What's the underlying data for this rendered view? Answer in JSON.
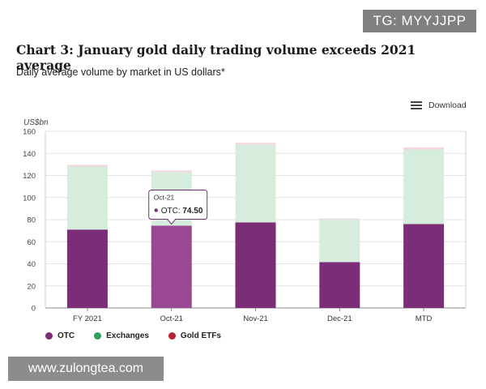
{
  "watermark_top": "TG: MYYJJPP",
  "watermark_bottom": "www.zulongtea.com",
  "download_label": "Download",
  "chart_data": {
    "type": "bar",
    "stacked": true,
    "title": "Chart 3: January gold daily trading volume exceeds 2021 average",
    "subtitle": "Daily average volume by market in US dollars*",
    "ylabel": "US$bn",
    "xlabel": "",
    "ylim": [
      0,
      160
    ],
    "yticks": [
      0,
      20,
      40,
      60,
      80,
      100,
      120,
      140,
      160
    ],
    "categories": [
      "FY 2021",
      "Oct-21",
      "Nov-21",
      "Dec-21",
      "MTD"
    ],
    "series": [
      {
        "name": "OTC",
        "color": "#7b2d77",
        "values": [
          71,
          74.5,
          77.5,
          41.5,
          76
        ]
      },
      {
        "name": "Exchanges",
        "color": "#d6ecdd",
        "values": [
          57,
          48.5,
          70.5,
          38.5,
          67.5
        ]
      },
      {
        "name": "Gold ETFs",
        "color": "#f2d6d9",
        "values": [
          1.5,
          1.5,
          1.5,
          1,
          2
        ]
      }
    ],
    "legend": [
      {
        "label": "OTC",
        "color": "#7b2d77"
      },
      {
        "label": "Exchanges",
        "color": "#2e9e58"
      },
      {
        "label": "Gold ETFs",
        "color": "#b52234"
      }
    ],
    "tooltip": {
      "category": "Oct-21",
      "series": "OTC",
      "value": "74.50",
      "label": "OTC:"
    }
  }
}
